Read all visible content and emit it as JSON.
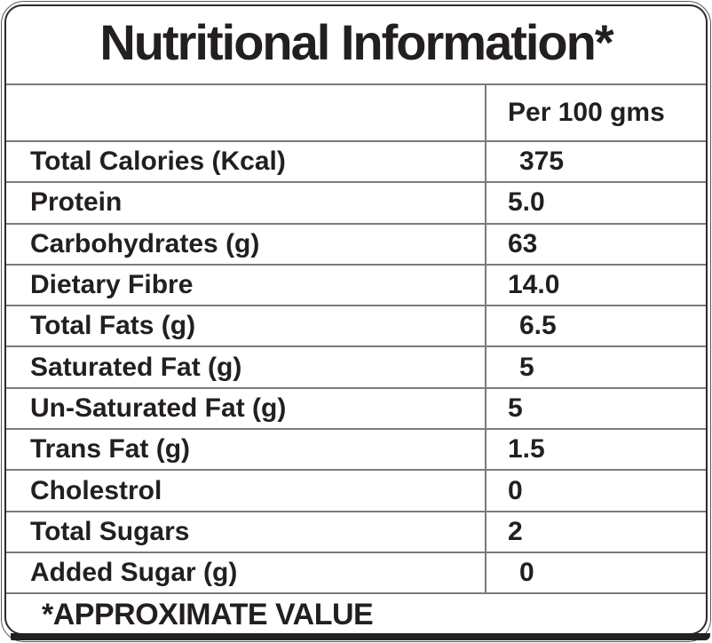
{
  "label": {
    "title": "Nutritional Information*",
    "column_header": "Per 100 gms",
    "rows": [
      {
        "name": "Total Calories (Kcal)",
        "value": "375",
        "indent": true
      },
      {
        "name": "Protein",
        "value": "5.0",
        "indent": false
      },
      {
        "name": "Carbohydrates (g)",
        "value": "63",
        "indent": false
      },
      {
        "name": "Dietary Fibre",
        "value": "14.0",
        "indent": false
      },
      {
        "name": "Total Fats (g)",
        "value": "6.5",
        "indent": true
      },
      {
        "name": "Saturated Fat (g)",
        "value": "5",
        "indent": true
      },
      {
        "name": "Un-Saturated Fat (g)",
        "value": "5",
        "indent": false
      },
      {
        "name": "Trans Fat (g)",
        "value": "1.5",
        "indent": false
      },
      {
        "name": "Cholestrol",
        "value": "0",
        "indent": false
      },
      {
        "name": "Total Sugars",
        "value": "2",
        "indent": false
      },
      {
        "name": "Added Sugar (g)",
        "value": "0",
        "indent": true
      }
    ],
    "footnote": "*APPROXIMATE VALUE",
    "colors": {
      "text": "#231f20",
      "grid_line": "#7b7b7b",
      "border": "#2d292a",
      "background": "#ffffff"
    }
  }
}
